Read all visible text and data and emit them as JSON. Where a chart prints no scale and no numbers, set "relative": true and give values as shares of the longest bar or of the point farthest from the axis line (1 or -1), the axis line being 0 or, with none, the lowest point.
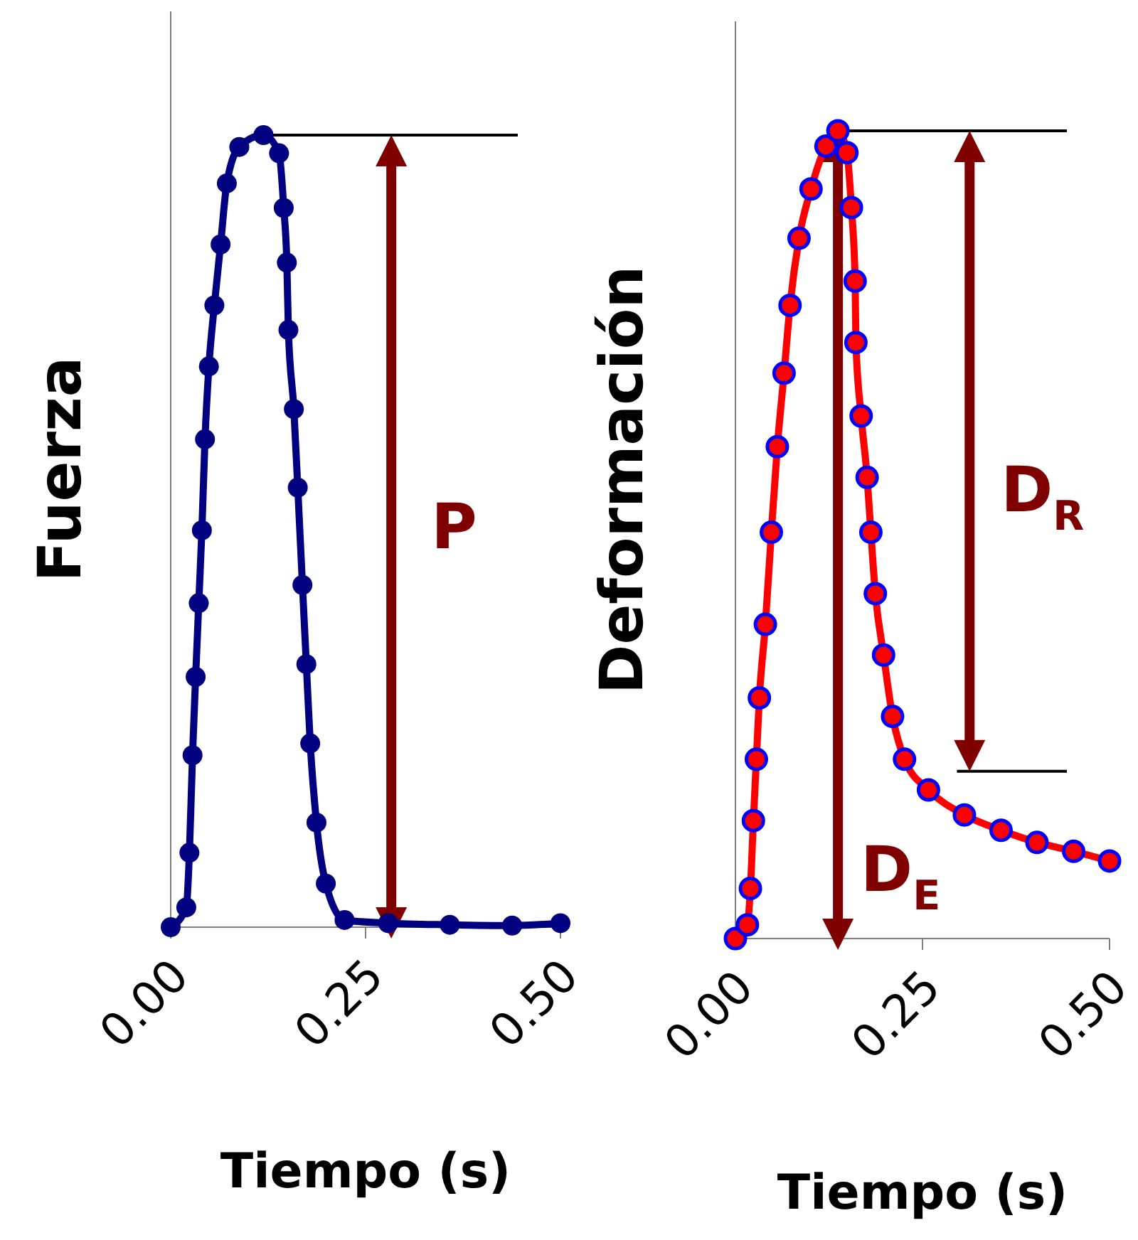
{
  "chart_data": [
    {
      "type": "line",
      "relative": true,
      "xlabel": "Tiempo (s)",
      "ylabel": "Fuerza",
      "marker": "circle",
      "xlim": [
        0,
        0.5
      ],
      "xticks": [
        {
          "value": 0,
          "label": "0.00"
        },
        {
          "value": 0.25,
          "label": "0.25"
        },
        {
          "value": 0.5,
          "label": "0.50"
        }
      ],
      "series": [
        {
          "color": "#000080",
          "x": [
            0,
            0.02,
            0.024,
            0.028,
            0.032,
            0.036,
            0.04,
            0.044,
            0.049,
            0.056,
            0.064,
            0.072,
            0.088,
            0.119,
            0.139,
            0.145,
            0.149,
            0.151,
            0.158,
            0.163,
            0.169,
            0.174,
            0.179,
            0.187,
            0.199,
            0.223,
            0.279,
            0.358,
            0.438,
            0.5
          ],
          "values": [
            0,
            0.025,
            0.094,
            0.217,
            0.316,
            0.409,
            0.501,
            0.616,
            0.708,
            0.785,
            0.862,
            0.939,
            0.985,
            1,
            0.977,
            0.908,
            0.839,
            0.754,
            0.654,
            0.555,
            0.432,
            0.332,
            0.232,
            0.132,
            0.055,
            0.009,
            0.005,
            0.003,
            0.002,
            0.005
          ]
        }
      ],
      "ref_lines": [
        {
          "axis": "y",
          "value": 1,
          "color": "#000000"
        }
      ],
      "annotations": [
        "P"
      ]
    },
    {
      "type": "line",
      "relative": true,
      "xlabel": "Tiempo (s)",
      "ylabel": "Deformación",
      "marker": "circle",
      "xlim": [
        0,
        0.5
      ],
      "xticks": [
        {
          "value": 0,
          "label": "0.00"
        },
        {
          "value": 0.25,
          "label": "0.25"
        },
        {
          "value": 0.5,
          "label": "0.50"
        }
      ],
      "series": [
        {
          "color": "#ff0000",
          "x": [
            0,
            0.016,
            0.02,
            0.024,
            0.028,
            0.032,
            0.04,
            0.048,
            0.056,
            0.065,
            0.073,
            0.085,
            0.101,
            0.121,
            0.137,
            0.149,
            0.155,
            0.16,
            0.161,
            0.168,
            0.176,
            0.181,
            0.187,
            0.198,
            0.21,
            0.226,
            0.258,
            0.306,
            0.355,
            0.403,
            0.452,
            0.5
          ],
          "values": [
            0,
            0.017,
            0.062,
            0.146,
            0.222,
            0.298,
            0.389,
            0.503,
            0.609,
            0.7,
            0.784,
            0.867,
            0.928,
            0.981,
            1,
            0.973,
            0.905,
            0.814,
            0.738,
            0.647,
            0.571,
            0.503,
            0.427,
            0.351,
            0.275,
            0.222,
            0.184,
            0.153,
            0.134,
            0.119,
            0.108,
            0.096
          ]
        }
      ],
      "ref_lines": [
        {
          "axis": "y",
          "value": 1,
          "color": "#000000"
        },
        {
          "axis": "y",
          "value": 0.207,
          "color": "#000000"
        }
      ],
      "annotations": [
        "D$_{R}$",
        "D$_{E}$"
      ]
    }
  ]
}
